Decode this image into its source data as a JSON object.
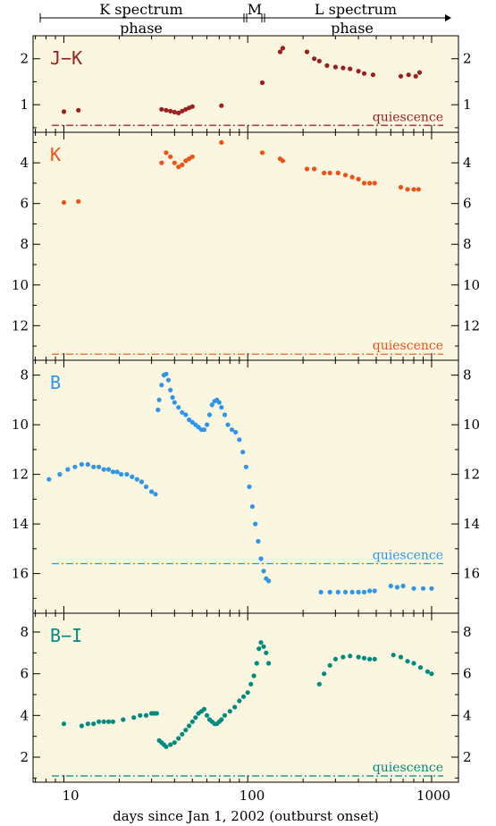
{
  "chart_data": {
    "type": "scatter",
    "phases": [
      {
        "label1": "K spectrum",
        "label2": "phase"
      },
      {
        "label1": "M",
        "label2": ""
      },
      {
        "label1": "L spectrum",
        "label2": "phase"
      }
    ],
    "xlabel": "days since Jan 1, 2002 (outburst onset)",
    "x_scale": "log",
    "xlim": [
      6.8,
      1400
    ],
    "x_tick_labels": [
      "10",
      "100",
      "1000"
    ],
    "colors": {
      "jk": "#9c1f1f",
      "k": "#ee5216",
      "b": "#2f95e8",
      "bi": "#008a80",
      "panel_bg": "#fbf6e0"
    },
    "panels": [
      {
        "name": "J−K",
        "ylim": [
          0.4,
          2.5
        ],
        "inverted": false,
        "yticks": [
          1,
          2
        ],
        "ytick_labels": [
          "1",
          "2"
        ],
        "quiescence": 0.55,
        "quiescence_label": "quiescence",
        "series": [
          {
            "color": "jk",
            "points": [
              [
                10,
                0.85
              ],
              [
                12,
                0.88
              ],
              [
                34,
                0.9
              ],
              [
                36,
                0.88
              ],
              [
                38,
                0.86
              ],
              [
                40,
                0.84
              ],
              [
                42,
                0.82
              ],
              [
                44,
                0.86
              ],
              [
                46,
                0.9
              ],
              [
                48,
                0.93
              ],
              [
                50,
                0.96
              ],
              [
                72,
                0.98
              ],
              [
                120,
                1.48
              ],
              [
                150,
                2.15
              ],
              [
                155,
                2.23
              ],
              [
                210,
                2.15
              ],
              [
                230,
                2.0
              ],
              [
                245,
                1.95
              ],
              [
                270,
                1.85
              ],
              [
                300,
                1.82
              ],
              [
                330,
                1.8
              ],
              [
                360,
                1.78
              ],
              [
                400,
                1.73
              ],
              [
                430,
                1.68
              ],
              [
                480,
                1.65
              ],
              [
                680,
                1.62
              ],
              [
                750,
                1.65
              ],
              [
                820,
                1.62
              ],
              [
                860,
                1.7
              ]
            ]
          }
        ]
      },
      {
        "name": "K",
        "ylim": [
          2.5,
          13.7
        ],
        "inverted": true,
        "yticks": [
          4,
          6,
          8,
          10,
          12
        ],
        "ytick_labels": [
          "4",
          "6",
          "8",
          "10",
          "12"
        ],
        "quiescence": 13.4,
        "quiescence_label": "quiescence",
        "series": [
          {
            "color": "k",
            "points": [
              [
                10,
                5.95
              ],
              [
                12,
                5.9
              ],
              [
                34,
                4.0
              ],
              [
                36,
                3.5
              ],
              [
                38,
                3.7
              ],
              [
                40,
                4.0
              ],
              [
                42,
                4.2
              ],
              [
                44,
                4.1
              ],
              [
                46,
                3.9
              ],
              [
                48,
                3.8
              ],
              [
                50,
                3.7
              ],
              [
                72,
                3.0
              ],
              [
                120,
                3.5
              ],
              [
                150,
                3.8
              ],
              [
                155,
                3.9
              ],
              [
                210,
                4.3
              ],
              [
                230,
                4.3
              ],
              [
                260,
                4.5
              ],
              [
                280,
                4.5
              ],
              [
                310,
                4.5
              ],
              [
                340,
                4.6
              ],
              [
                370,
                4.7
              ],
              [
                400,
                4.8
              ],
              [
                430,
                5.0
              ],
              [
                460,
                5.0
              ],
              [
                490,
                5.0
              ],
              [
                680,
                5.2
              ],
              [
                740,
                5.3
              ],
              [
                800,
                5.3
              ],
              [
                850,
                5.3
              ]
            ]
          }
        ]
      },
      {
        "name": "B",
        "ylim": [
          7.4,
          17.6
        ],
        "inverted": true,
        "yticks": [
          8,
          10,
          12,
          14,
          16
        ],
        "ytick_labels": [
          "8",
          "10",
          "12",
          "14",
          "16"
        ],
        "quiescence": 15.6,
        "quiescence_label": "quiescence",
        "series": [
          {
            "color": "b",
            "points": [
              [
                8.3,
                12.2
              ],
              [
                9.5,
                12.0
              ],
              [
                10.5,
                11.8
              ],
              [
                11.5,
                11.7
              ],
              [
                12.5,
                11.6
              ],
              [
                13.5,
                11.6
              ],
              [
                14.5,
                11.7
              ],
              [
                15.5,
                11.7
              ],
              [
                16.5,
                11.8
              ],
              [
                17.5,
                11.8
              ],
              [
                18.5,
                11.9
              ],
              [
                19.5,
                11.9
              ],
              [
                20.5,
                12.0
              ],
              [
                22,
                12.0
              ],
              [
                23.5,
                12.1
              ],
              [
                25,
                12.2
              ],
              [
                26.5,
                12.3
              ],
              [
                28,
                12.5
              ],
              [
                30,
                12.7
              ],
              [
                31.5,
                12.8
              ],
              [
                32.5,
                9.4
              ],
              [
                33,
                9.0
              ],
              [
                34,
                8.4
              ],
              [
                35,
                8.0
              ],
              [
                36,
                7.95
              ],
              [
                37,
                8.2
              ],
              [
                38,
                8.6
              ],
              [
                39,
                8.9
              ],
              [
                40,
                9.1
              ],
              [
                42,
                9.3
              ],
              [
                44,
                9.5
              ],
              [
                46,
                9.6
              ],
              [
                48,
                9.8
              ],
              [
                50,
                9.9
              ],
              [
                52,
                10.0
              ],
              [
                54,
                10.1
              ],
              [
                56,
                10.2
              ],
              [
                58,
                10.2
              ],
              [
                60,
                10.0
              ],
              [
                62,
                9.6
              ],
              [
                64,
                9.2
              ],
              [
                66,
                9.05
              ],
              [
                68,
                9.0
              ],
              [
                70,
                9.1
              ],
              [
                72,
                9.3
              ],
              [
                75,
                9.6
              ],
              [
                78,
                10.0
              ],
              [
                82,
                10.2
              ],
              [
                86,
                10.3
              ],
              [
                90,
                10.6
              ],
              [
                94,
                11.1
              ],
              [
                98,
                11.7
              ],
              [
                102,
                12.5
              ],
              [
                106,
                13.3
              ],
              [
                110,
                14.0
              ],
              [
                114,
                14.7
              ],
              [
                118,
                15.4
              ],
              [
                122,
                15.9
              ],
              [
                126,
                16.2
              ],
              [
                130,
                16.3
              ],
              [
                250,
                16.75
              ],
              [
                280,
                16.75
              ],
              [
                310,
                16.75
              ],
              [
                340,
                16.75
              ],
              [
                370,
                16.75
              ],
              [
                400,
                16.75
              ],
              [
                430,
                16.75
              ],
              [
                460,
                16.7
              ],
              [
                490,
                16.7
              ],
              [
                600,
                16.5
              ],
              [
                650,
                16.55
              ],
              [
                700,
                16.5
              ],
              [
                800,
                16.6
              ],
              [
                900,
                16.6
              ],
              [
                1000,
                16.6
              ]
            ]
          }
        ]
      },
      {
        "name": "B−I",
        "ylim": [
          0.8,
          8.9
        ],
        "inverted": false,
        "yticks": [
          2,
          4,
          6,
          8
        ],
        "ytick_labels": [
          "2",
          "4",
          "6",
          "8"
        ],
        "quiescence": 1.1,
        "quiescence_label": "quiescence",
        "series": [
          {
            "color": "bi",
            "points": [
              [
                10,
                3.6
              ],
              [
                12.5,
                3.5
              ],
              [
                13.5,
                3.6
              ],
              [
                14.5,
                3.6
              ],
              [
                15.5,
                3.7
              ],
              [
                16.5,
                3.7
              ],
              [
                17.5,
                3.7
              ],
              [
                18.5,
                3.7
              ],
              [
                21,
                3.8
              ],
              [
                24,
                3.9
              ],
              [
                26,
                4.0
              ],
              [
                28,
                4.0
              ],
              [
                30,
                4.1
              ],
              [
                31,
                4.1
              ],
              [
                32,
                4.1
              ],
              [
                33,
                2.8
              ],
              [
                34,
                2.7
              ],
              [
                35,
                2.6
              ],
              [
                36,
                2.5
              ],
              [
                38,
                2.6
              ],
              [
                40,
                2.7
              ],
              [
                42,
                2.9
              ],
              [
                44,
                3.1
              ],
              [
                46,
                3.3
              ],
              [
                48,
                3.5
              ],
              [
                50,
                3.7
              ],
              [
                52,
                3.9
              ],
              [
                54,
                4.1
              ],
              [
                56,
                4.2
              ],
              [
                58,
                4.3
              ],
              [
                60,
                4.0
              ],
              [
                62,
                3.8
              ],
              [
                64,
                3.7
              ],
              [
                66,
                3.6
              ],
              [
                68,
                3.6
              ],
              [
                70,
                3.7
              ],
              [
                72,
                3.8
              ],
              [
                75,
                4.0
              ],
              [
                80,
                4.2
              ],
              [
                85,
                4.4
              ],
              [
                90,
                4.7
              ],
              [
                95,
                4.9
              ],
              [
                100,
                5.1
              ],
              [
                104,
                5.5
              ],
              [
                108,
                5.9
              ],
              [
                112,
                6.5
              ],
              [
                115,
                7.2
              ],
              [
                118,
                7.5
              ],
              [
                122,
                7.3
              ],
              [
                126,
                7.0
              ],
              [
                130,
                6.5
              ],
              [
                245,
                5.5
              ],
              [
                260,
                6.0
              ],
              [
                280,
                6.4
              ],
              [
                300,
                6.7
              ],
              [
                330,
                6.8
              ],
              [
                360,
                6.85
              ],
              [
                400,
                6.8
              ],
              [
                430,
                6.75
              ],
              [
                460,
                6.7
              ],
              [
                490,
                6.7
              ],
              [
                620,
                6.9
              ],
              [
                680,
                6.8
              ],
              [
                740,
                6.6
              ],
              [
                800,
                6.5
              ],
              [
                870,
                6.3
              ],
              [
                950,
                6.1
              ],
              [
                1000,
                6.0
              ]
            ]
          }
        ]
      }
    ]
  }
}
